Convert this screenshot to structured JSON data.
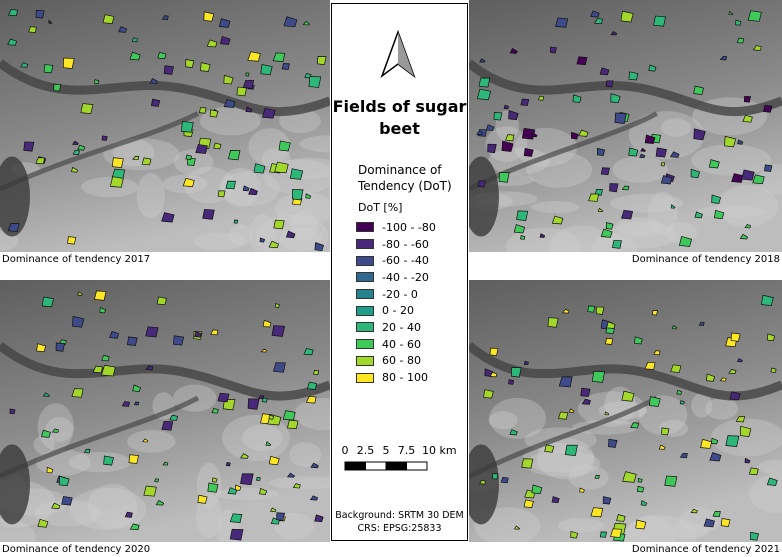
{
  "title": "Fields of sugar beet",
  "panels": [
    {
      "caption": "Dominance of tendency 2017"
    },
    {
      "caption": "Dominance of tendency 2018"
    },
    {
      "caption": "Dominance of tendency 2020"
    },
    {
      "caption": "Dominance of tendency 2021"
    }
  ],
  "legend": {
    "title": "Dominance of Tendency (DoT)",
    "unit": "DoT [%]",
    "items": [
      {
        "label": "-100 - -80",
        "color": "#440154"
      },
      {
        "label": "-80 - -60",
        "color": "#482878"
      },
      {
        "label": "-60 - -40",
        "color": "#3e4a89"
      },
      {
        "label": "-40 - -20",
        "color": "#31688e"
      },
      {
        "label": "-20 - 0",
        "color": "#26828e"
      },
      {
        "label": "0 - 20",
        "color": "#1f9e89"
      },
      {
        "label": "20 - 40",
        "color": "#2db87a"
      },
      {
        "label": "40 - 60",
        "color": "#3fc95a"
      },
      {
        "label": "60 - 80",
        "color": "#a3d82b"
      },
      {
        "label": "80 - 100",
        "color": "#fde725"
      }
    ]
  },
  "scale_bar": {
    "labels": [
      "0",
      "2.5",
      "5",
      "7.5",
      "10 km"
    ]
  },
  "credits": [
    "Background: SRTM 30 DEM",
    "CRS: EPSG:25833"
  ]
}
